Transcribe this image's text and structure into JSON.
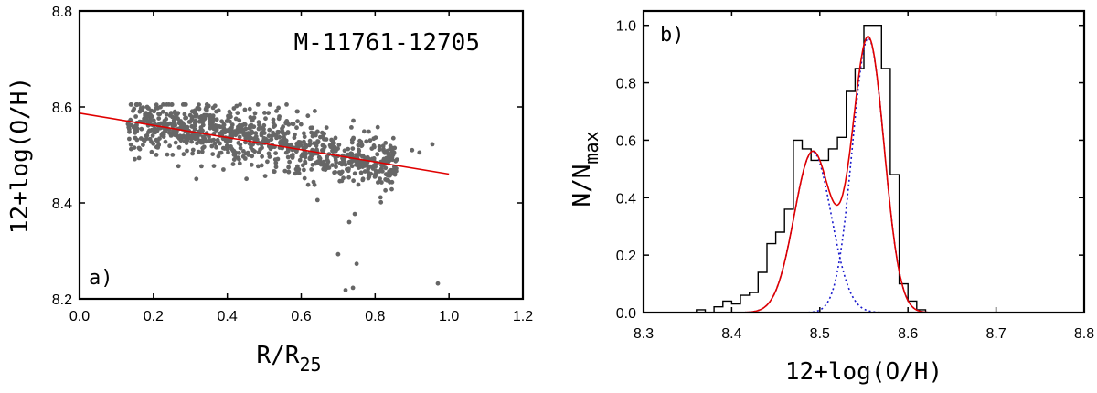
{
  "chart_data": [
    {
      "type": "scatter",
      "panel_label": "a)",
      "title": "M-11761-12705",
      "xlabel": {
        "main": "R/R",
        "sub": "25"
      },
      "ylabel": "12+log(O/H)",
      "xlim": [
        0.0,
        1.2
      ],
      "ylim": [
        8.2,
        8.8
      ],
      "xticks": [
        "0.0",
        "0.2",
        "0.4",
        "0.6",
        "0.8",
        "1.0",
        "1.2"
      ],
      "yticks": [
        "8.2",
        "8.4",
        "8.6",
        "8.8"
      ],
      "colors": {
        "points": "#666666",
        "fit": "#e00000"
      },
      "fit_line": {
        "x": [
          0.0,
          1.0
        ],
        "y": [
          8.587,
          8.46
        ]
      },
      "cloud": {
        "n": 950,
        "x_range": [
          0.13,
          0.86
        ],
        "slope": -0.13,
        "intercept": 8.587,
        "scatter_sd": 0.03
      },
      "extra_points": [
        {
          "x": 0.7,
          "y": 8.293
        },
        {
          "x": 0.72,
          "y": 8.218
        },
        {
          "x": 0.74,
          "y": 8.223
        },
        {
          "x": 0.75,
          "y": 8.273
        },
        {
          "x": 0.745,
          "y": 8.377
        },
        {
          "x": 0.73,
          "y": 8.36
        },
        {
          "x": 0.97,
          "y": 8.232
        },
        {
          "x": 0.955,
          "y": 8.522
        },
        {
          "x": 0.9,
          "y": 8.51
        },
        {
          "x": 0.92,
          "y": 8.505
        }
      ]
    },
    {
      "type": "histogram",
      "panel_label": "b)",
      "xlabel": "12+log(O/H)",
      "ylabel": {
        "main": "N/N",
        "sub": "max"
      },
      "xlim": [
        8.3,
        8.8
      ],
      "ylim": [
        0.0,
        1.05
      ],
      "xticks": [
        "8.3",
        "8.4",
        "8.5",
        "8.6",
        "8.7",
        "8.8"
      ],
      "yticks": [
        "0.0",
        "0.2",
        "0.4",
        "0.6",
        "0.8",
        "1.0"
      ],
      "colors": {
        "histogram": "#000000",
        "total_fit": "#e00000",
        "components": "#1a1acc"
      },
      "bin_edges": [
        8.36,
        8.37,
        8.38,
        8.39,
        8.4,
        8.41,
        8.42,
        8.43,
        8.44,
        8.45,
        8.46,
        8.47,
        8.48,
        8.49,
        8.5,
        8.51,
        8.52,
        8.53,
        8.54,
        8.55,
        8.56,
        8.57,
        8.58,
        8.59,
        8.6,
        8.61,
        8.62
      ],
      "counts": [
        0.01,
        0.0,
        0.02,
        0.04,
        0.03,
        0.06,
        0.07,
        0.14,
        0.24,
        0.28,
        0.36,
        0.6,
        0.57,
        0.53,
        0.53,
        0.57,
        0.61,
        0.77,
        0.85,
        1.0,
        1.0,
        0.85,
        0.48,
        0.1,
        0.04,
        0.01
      ],
      "gaussians": [
        {
          "amplitude": 0.56,
          "mean": 8.492,
          "sigma": 0.021
        },
        {
          "amplitude": 0.955,
          "mean": 8.555,
          "sigma": 0.018
        }
      ]
    }
  ]
}
